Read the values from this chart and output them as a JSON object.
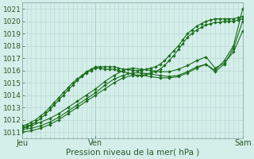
{
  "xlabel": "Pression niveau de la mer( hPa )",
  "bg_color": "#d4eeea",
  "plot_bg_color": "#d4eeea",
  "grid_color": "#b8d8d4",
  "line_color": "#1a6e1a",
  "ylim": [
    1010.5,
    1021.5
  ],
  "xlim": [
    0,
    48
  ],
  "xtick_positions": [
    0,
    16,
    48
  ],
  "xtick_labels": [
    "Jeu",
    "Ven",
    "Sam"
  ],
  "ytick_positions": [
    1011,
    1012,
    1013,
    1014,
    1015,
    1016,
    1017,
    1018,
    1019,
    1020,
    1021
  ],
  "minor_xtick_interval": 1,
  "series": [
    {
      "x": [
        0,
        1,
        2,
        3,
        4,
        5,
        6,
        7,
        8,
        9,
        10,
        11,
        12,
        13,
        14,
        15,
        16,
        17,
        18,
        19,
        20,
        21,
        22,
        23,
        24,
        25,
        26,
        27,
        28,
        29,
        30,
        31,
        32,
        33,
        34,
        35,
        36,
        37,
        38,
        39,
        40,
        41,
        42,
        43,
        44,
        45,
        46,
        47,
        48
      ],
      "y": [
        1011.5,
        1011.6,
        1011.8,
        1012.0,
        1012.3,
        1012.6,
        1013.0,
        1013.4,
        1013.8,
        1014.2,
        1014.6,
        1015.0,
        1015.3,
        1015.6,
        1015.9,
        1016.1,
        1016.3,
        1016.3,
        1016.3,
        1016.3,
        1016.3,
        1016.2,
        1016.1,
        1016.1,
        1016.0,
        1016.0,
        1016.0,
        1016.1,
        1016.2,
        1016.3,
        1016.5,
        1016.8,
        1017.2,
        1017.6,
        1018.0,
        1018.5,
        1019.0,
        1019.3,
        1019.6,
        1019.8,
        1020.0,
        1020.1,
        1020.2,
        1020.2,
        1020.2,
        1020.2,
        1020.2,
        1020.3,
        1020.4
      ]
    },
    {
      "x": [
        0,
        1,
        2,
        3,
        4,
        5,
        6,
        7,
        8,
        9,
        10,
        11,
        12,
        13,
        14,
        15,
        16,
        17,
        18,
        19,
        20,
        21,
        22,
        23,
        24,
        25,
        26,
        27,
        28,
        29,
        30,
        31,
        32,
        33,
        34,
        35,
        36,
        37,
        38,
        39,
        40,
        41,
        42,
        43,
        44,
        45,
        46,
        47,
        48
      ],
      "y": [
        1011.3,
        1011.4,
        1011.6,
        1011.8,
        1012.1,
        1012.4,
        1012.8,
        1013.2,
        1013.6,
        1014.0,
        1014.4,
        1014.8,
        1015.2,
        1015.5,
        1015.8,
        1016.0,
        1016.2,
        1016.2,
        1016.1,
        1016.1,
        1016.1,
        1016.0,
        1015.9,
        1015.8,
        1015.7,
        1015.6,
        1015.6,
        1015.7,
        1015.8,
        1015.9,
        1016.1,
        1016.4,
        1016.8,
        1017.2,
        1017.7,
        1018.2,
        1018.7,
        1019.0,
        1019.3,
        1019.5,
        1019.7,
        1019.8,
        1019.9,
        1019.9,
        1020.0,
        1020.0,
        1020.0,
        1020.1,
        1020.2
      ]
    },
    {
      "x": [
        0,
        2,
        4,
        6,
        8,
        10,
        12,
        14,
        16,
        18,
        20,
        22,
        24,
        26,
        28,
        30,
        32,
        34,
        36,
        38,
        40,
        42,
        44,
        46,
        48
      ],
      "y": [
        1011.0,
        1011.1,
        1011.3,
        1011.6,
        1012.0,
        1012.5,
        1013.0,
        1013.5,
        1014.0,
        1014.5,
        1015.0,
        1015.4,
        1015.6,
        1015.6,
        1015.5,
        1015.4,
        1015.4,
        1015.5,
        1015.8,
        1016.2,
        1016.5,
        1016.0,
        1016.8,
        1018.0,
        1021.0
      ]
    },
    {
      "x": [
        0,
        2,
        4,
        6,
        8,
        10,
        12,
        14,
        16,
        18,
        20,
        22,
        24,
        26,
        28,
        30,
        32,
        34,
        36,
        38,
        40,
        42,
        44,
        46,
        48
      ],
      "y": [
        1011.2,
        1011.3,
        1011.5,
        1011.8,
        1012.2,
        1012.7,
        1013.2,
        1013.7,
        1014.2,
        1014.8,
        1015.3,
        1015.6,
        1015.8,
        1015.8,
        1015.7,
        1015.6,
        1015.5,
        1015.6,
        1015.9,
        1016.3,
        1016.5,
        1015.9,
        1016.5,
        1017.8,
        1020.0
      ]
    },
    {
      "x": [
        0,
        2,
        4,
        6,
        8,
        10,
        12,
        14,
        16,
        18,
        20,
        22,
        24,
        26,
        28,
        30,
        32,
        34,
        36,
        38,
        40,
        42,
        44,
        46,
        48
      ],
      "y": [
        1011.4,
        1011.5,
        1011.8,
        1012.1,
        1012.5,
        1013.0,
        1013.5,
        1014.0,
        1014.5,
        1015.1,
        1015.6,
        1016.0,
        1016.2,
        1016.1,
        1016.0,
        1015.9,
        1015.9,
        1016.1,
        1016.4,
        1016.8,
        1017.1,
        1016.2,
        1016.6,
        1017.5,
        1019.2
      ]
    }
  ]
}
